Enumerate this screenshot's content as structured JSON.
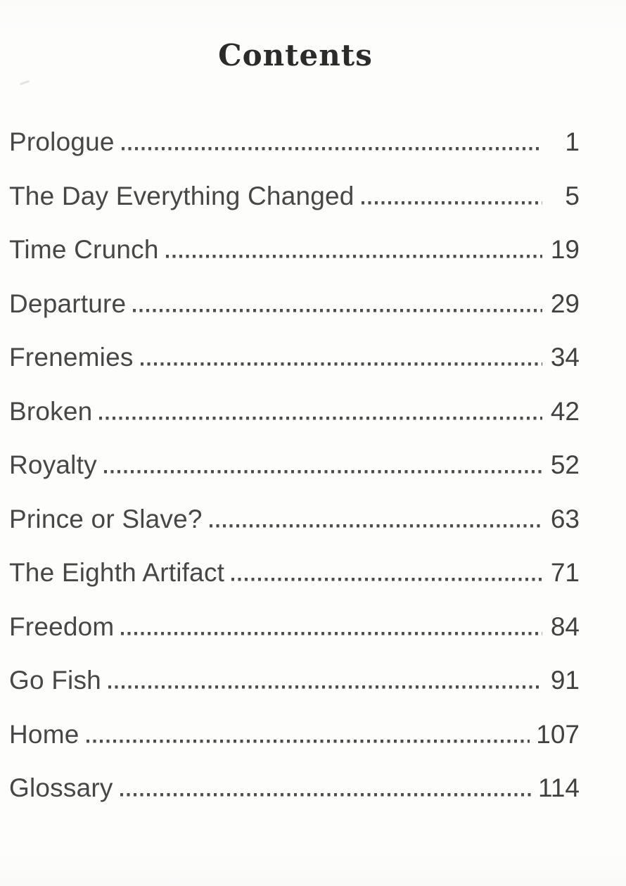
{
  "page": {
    "title": "Contents"
  },
  "toc": {
    "entries": [
      {
        "label": "Prologue",
        "page": "1"
      },
      {
        "label": "The Day Everything Changed",
        "page": "5"
      },
      {
        "label": "Time Crunch",
        "page": "19"
      },
      {
        "label": "Departure",
        "page": "29"
      },
      {
        "label": "Frenemies",
        "page": "34"
      },
      {
        "label": "Broken",
        "page": "42"
      },
      {
        "label": "Royalty",
        "page": "52"
      },
      {
        "label": "Prince or Slave?",
        "page": "63"
      },
      {
        "label": "The Eighth Artifact",
        "page": "71"
      },
      {
        "label": "Freedom",
        "page": "84"
      },
      {
        "label": "Go Fish",
        "page": "91"
      },
      {
        "label": "Home",
        "page": "107"
      },
      {
        "label": "Glossary",
        "page": "114"
      }
    ]
  },
  "colors": {
    "text": "#454545",
    "title": "#2b2b2b",
    "dots": "#4d4d4d",
    "background": "#fdfdfc"
  }
}
